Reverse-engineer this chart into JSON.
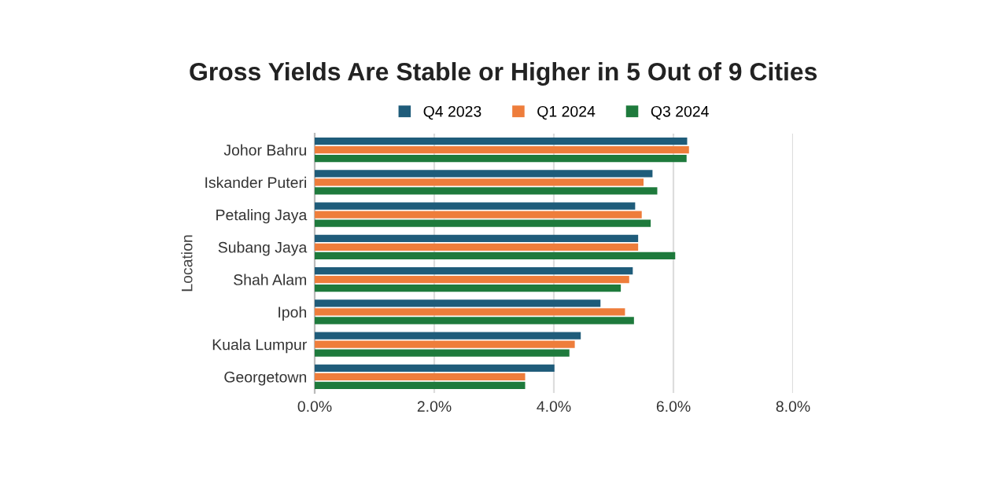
{
  "chart_data": {
    "type": "bar",
    "orientation": "horizontal",
    "title": "Gross Yields Are Stable or Higher in 5 Out of 9 Cities",
    "ylabel": "Location",
    "categories": [
      "Johor Bahru",
      "Iskander Puteri",
      "Petaling Jaya",
      "Subang Jaya",
      "Shah Alam",
      "Ipoh",
      "Kuala Lumpur",
      "Georgetown"
    ],
    "series": [
      {
        "name": "Q4 2023",
        "color": "#1f5c7a",
        "values": [
          6.23,
          5.65,
          5.36,
          5.41,
          5.32,
          4.78,
          4.45,
          4.01
        ]
      },
      {
        "name": "Q1 2024",
        "color": "#ee7d3b",
        "values": [
          6.26,
          5.5,
          5.47,
          5.41,
          5.26,
          5.19,
          4.35,
          3.52
        ]
      },
      {
        "name": "Q3 2024",
        "color": "#1e7a3c",
        "values": [
          6.22,
          5.73,
          5.62,
          6.03,
          5.12,
          5.34,
          4.26,
          3.52
        ]
      }
    ],
    "xlim": [
      0,
      8
    ],
    "xticks": [
      {
        "value": 0,
        "label": "0.0%"
      },
      {
        "value": 2,
        "label": "2.0%"
      },
      {
        "value": 4,
        "label": "4.0%"
      },
      {
        "value": 6,
        "label": "6.0%"
      },
      {
        "value": 8,
        "label": "8.0%"
      }
    ],
    "grid": "x",
    "legend": "top"
  }
}
